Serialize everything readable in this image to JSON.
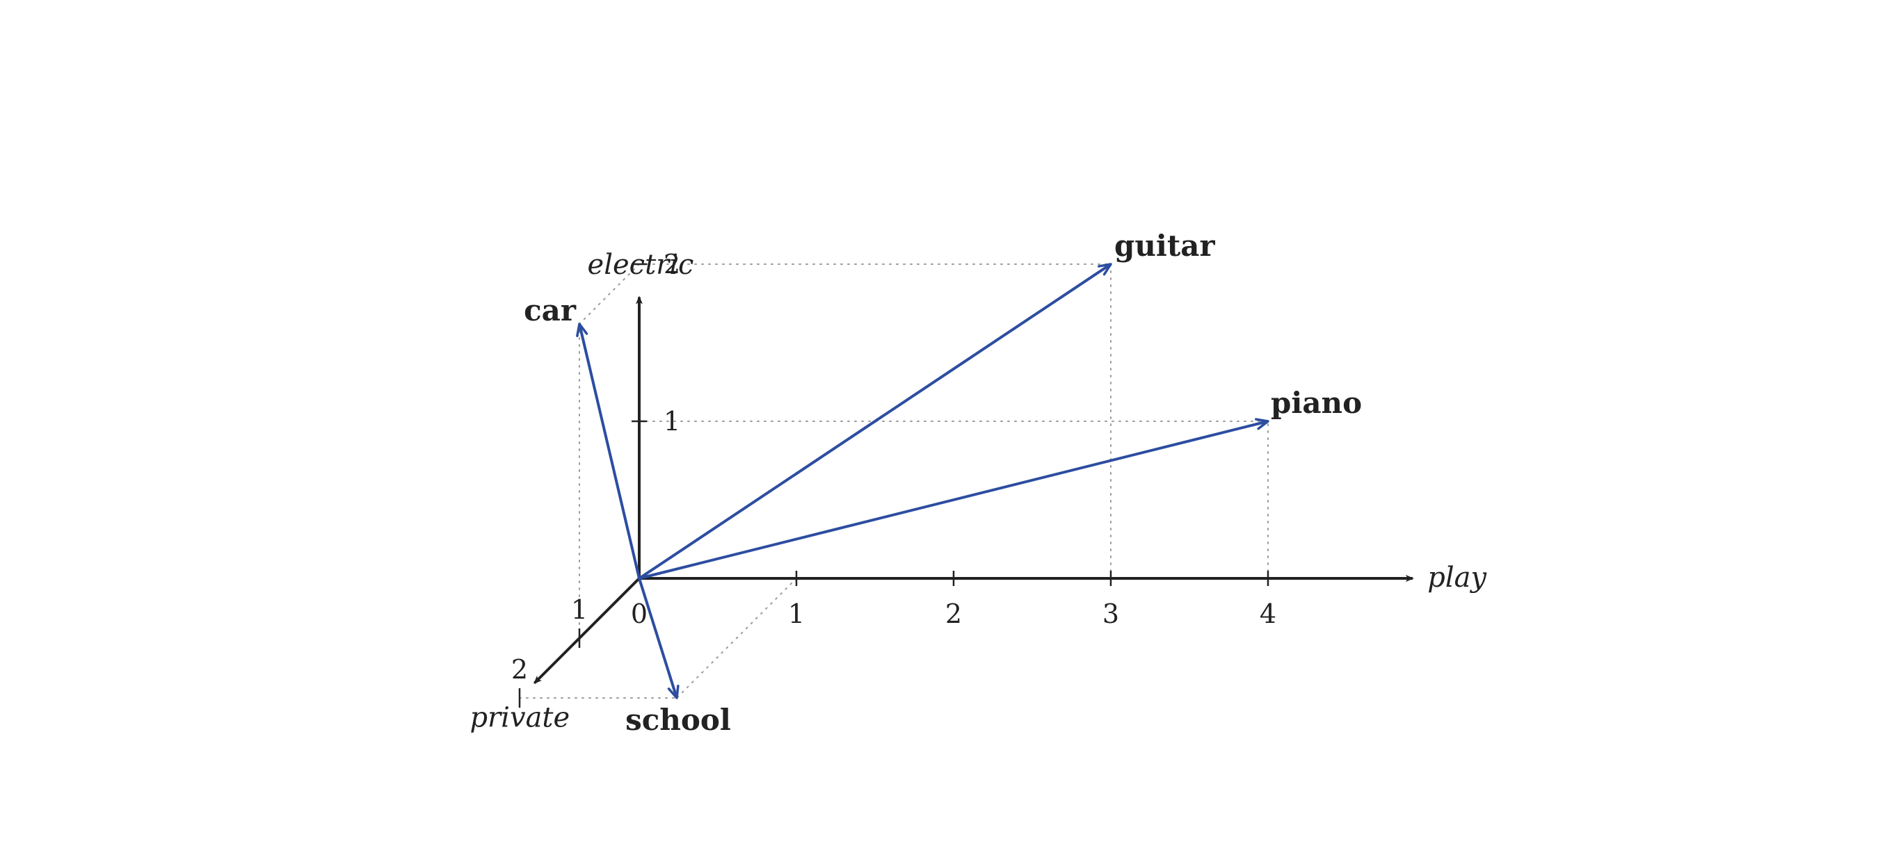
{
  "colors": {
    "vector": "#2c4da0",
    "axis": "#222222",
    "guide": "#9a9a9a"
  },
  "axes": {
    "x": {
      "label": "play",
      "ticks": [
        "1",
        "2",
        "3",
        "4"
      ]
    },
    "y": {
      "label": "electric",
      "ticks": [
        "1",
        "2"
      ]
    },
    "z": {
      "label": "private",
      "ticks": [
        "1",
        "2"
      ]
    },
    "origin_label": "0"
  },
  "vectors": [
    {
      "id": "guitar",
      "label": "guitar",
      "coords": [
        3,
        2,
        0
      ]
    },
    {
      "id": "piano",
      "label": "piano",
      "coords": [
        4,
        1,
        0
      ]
    },
    {
      "id": "car",
      "label": "car",
      "coords": [
        0,
        2,
        1
      ]
    },
    {
      "id": "school",
      "label": "school",
      "coords": [
        1,
        0,
        2
      ]
    }
  ]
}
